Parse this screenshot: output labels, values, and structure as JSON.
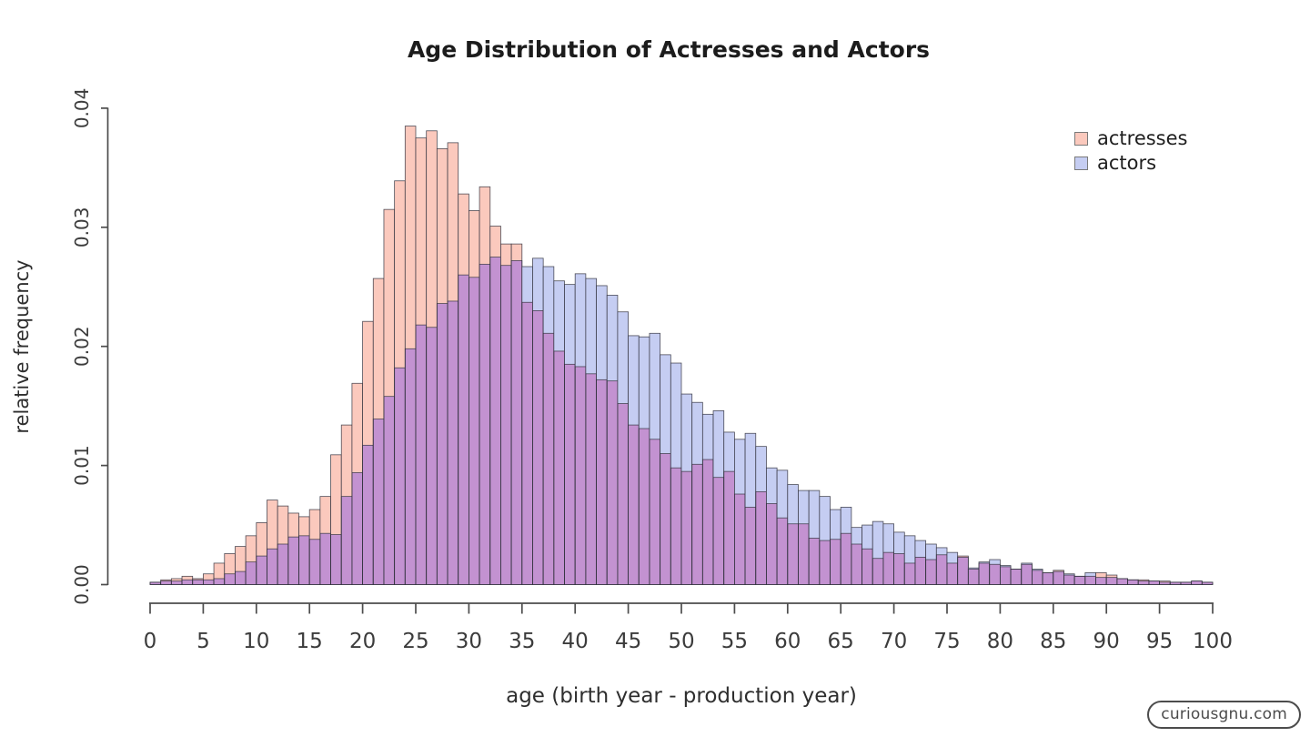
{
  "chart": {
    "title": "Age Distribution of Actresses and Actors",
    "x_axis": {
      "title": "age (birth year - production year)"
    },
    "y_axis": {
      "title": "relative frequency"
    },
    "legend": {
      "items": [
        {
          "label": "actresses",
          "color": "#fbc9bd"
        },
        {
          "label": "actors",
          "color": "#c5cdf2"
        }
      ]
    }
  },
  "watermark": {
    "text": "curiousgnu.com"
  },
  "colors": {
    "actress_fill": "#fbc9bd",
    "actor_fill": "#c5cdf2",
    "overlap_fill": "#c392d1",
    "bar_border": "#32323e",
    "axis": "#4d4d4d",
    "tick_label": "#3c3c3c"
  },
  "chart_data": {
    "type": "bar",
    "subtype": "overlapping-histogram",
    "title": "Age Distribution of Actresses and Actors",
    "xlabel": "age (birth year - production year)",
    "ylabel": "relative frequency",
    "bin_start": 0,
    "bin_width": 1,
    "bin_count": 100,
    "xlim": [
      0,
      100
    ],
    "ylim": [
      0,
      0.04
    ],
    "x_ticks": [
      0,
      5,
      10,
      15,
      20,
      25,
      30,
      35,
      40,
      45,
      50,
      55,
      60,
      65,
      70,
      75,
      80,
      85,
      90,
      95,
      100
    ],
    "y_ticks": [
      0,
      0.01,
      0.02,
      0.03,
      0.04
    ],
    "y_tick_labels": [
      "0.00",
      "0.01",
      "0.02",
      "0.03",
      "0.04"
    ],
    "legend_position": "top-right",
    "grid": false,
    "series": [
      {
        "name": "actresses",
        "color": "#fbc9bd",
        "values": [
          0.0002,
          0.0004,
          0.0005,
          0.0007,
          0.0005,
          0.0009,
          0.0018,
          0.0026,
          0.0032,
          0.0041,
          0.0052,
          0.0071,
          0.0066,
          0.006,
          0.0057,
          0.0063,
          0.0074,
          0.0109,
          0.0134,
          0.0169,
          0.0221,
          0.0257,
          0.0315,
          0.0339,
          0.0385,
          0.0375,
          0.0381,
          0.0366,
          0.0371,
          0.0328,
          0.0314,
          0.0334,
          0.0301,
          0.0286,
          0.0286,
          0.0237,
          0.023,
          0.0211,
          0.0196,
          0.0185,
          0.0183,
          0.0177,
          0.0172,
          0.0171,
          0.0152,
          0.0134,
          0.0131,
          0.0122,
          0.011,
          0.0098,
          0.0095,
          0.0101,
          0.0105,
          0.009,
          0.0095,
          0.0076,
          0.0065,
          0.0078,
          0.0068,
          0.0056,
          0.0051,
          0.0051,
          0.0039,
          0.0037,
          0.0038,
          0.0043,
          0.0034,
          0.003,
          0.0022,
          0.0027,
          0.0026,
          0.0018,
          0.0023,
          0.0021,
          0.0025,
          0.0018,
          0.0024,
          0.0013,
          0.0018,
          0.0017,
          0.0015,
          0.0013,
          0.0017,
          0.0012,
          0.001,
          0.0012,
          0.0008,
          0.0007,
          0.0007,
          0.001,
          0.0008,
          0.0005,
          0.0004,
          0.0004,
          0.0003,
          0.0003,
          0.0002,
          0.0002,
          0.0003,
          0.0002
        ]
      },
      {
        "name": "actors",
        "color": "#c5cdf2",
        "values": [
          0.0002,
          0.0003,
          0.0003,
          0.0004,
          0.0004,
          0.0004,
          0.0005,
          0.0009,
          0.0011,
          0.0019,
          0.0024,
          0.003,
          0.0034,
          0.004,
          0.0041,
          0.0038,
          0.0043,
          0.0042,
          0.0074,
          0.0094,
          0.0117,
          0.0139,
          0.0158,
          0.0182,
          0.0198,
          0.0218,
          0.0216,
          0.0236,
          0.0238,
          0.026,
          0.0258,
          0.0269,
          0.0275,
          0.0268,
          0.0272,
          0.0267,
          0.0274,
          0.0267,
          0.0255,
          0.0252,
          0.0261,
          0.0257,
          0.0251,
          0.0243,
          0.0229,
          0.0209,
          0.0208,
          0.0211,
          0.0193,
          0.0186,
          0.016,
          0.0153,
          0.0143,
          0.0146,
          0.0128,
          0.0122,
          0.0127,
          0.0116,
          0.0098,
          0.0096,
          0.0084,
          0.0079,
          0.0079,
          0.0074,
          0.0063,
          0.0065,
          0.0048,
          0.005,
          0.0053,
          0.0051,
          0.0044,
          0.0041,
          0.0037,
          0.0034,
          0.0031,
          0.0027,
          0.0023,
          0.0014,
          0.0019,
          0.0021,
          0.0016,
          0.0013,
          0.0018,
          0.0013,
          0.001,
          0.0011,
          0.0009,
          0.0007,
          0.001,
          0.0006,
          0.0006,
          0.0005,
          0.0004,
          0.0003,
          0.0003,
          0.0002,
          0.0002,
          0.0002,
          0.0003,
          0.0002
        ]
      }
    ],
    "overlap_color": "#c392d1"
  }
}
